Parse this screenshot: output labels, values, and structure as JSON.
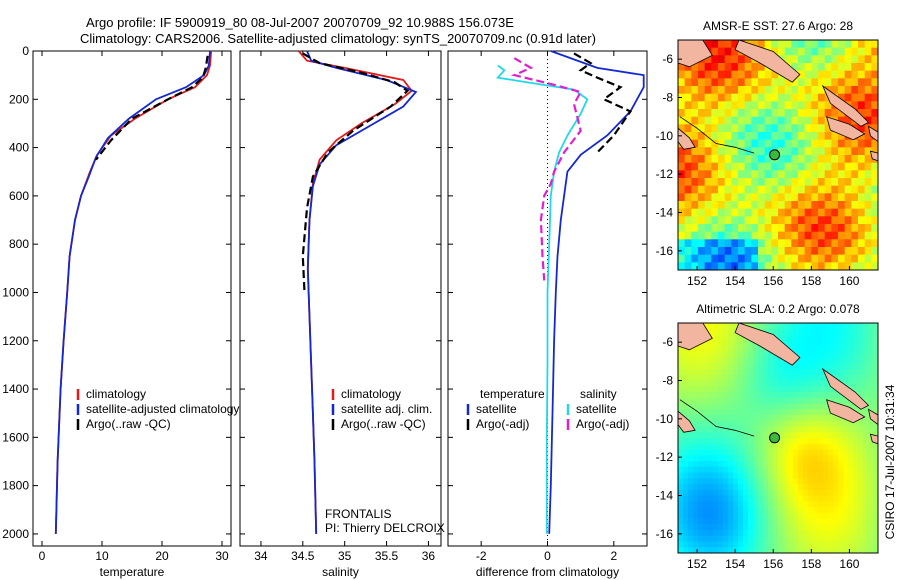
{
  "title_line1": "Argo profile: IF 5900919_80 08-Jul-2007 20070709_92 10.988S 156.073E",
  "title_line2": "Climatology: CARS2006. Satellite-adjusted climatology: synTS_20070709.nc (0.91d later)",
  "credit": "CSIRO 17-Jul-2007 10:31:34",
  "float_info": {
    "line1": "FRONTALIS",
    "line2": "PI: Thierry DELCROIX"
  },
  "colors": {
    "red": "#e31a1c",
    "blue": "#1428d2",
    "black": "#000000",
    "cyan": "#22d8e8",
    "magenta": "#e020d0"
  },
  "chart_data": [
    {
      "id": "temperature",
      "type": "line",
      "xlabel": "temperature",
      "xlim": [
        -1.5,
        31.5
      ],
      "ylim": [
        2050,
        0
      ],
      "xticks": [
        0,
        10,
        20,
        30
      ],
      "yticks": [
        0,
        200,
        400,
        600,
        800,
        1000,
        1200,
        1400,
        1600,
        1800,
        2000
      ],
      "legend": {
        "position": "lower-middle",
        "entries": [
          {
            "label": "climatology",
            "color": "red"
          },
          {
            "label": "satellite-adjusted climatology",
            "color": "blue"
          },
          {
            "label": "Argo(..raw -QC)",
            "color": "black"
          }
        ]
      },
      "series": [
        {
          "name": "climatology",
          "color": "red",
          "style": "solid",
          "points": [
            [
              28.2,
              0
            ],
            [
              28.0,
              60
            ],
            [
              27.5,
              100
            ],
            [
              25.5,
              150
            ],
            [
              21,
              200
            ],
            [
              15.5,
              280
            ],
            [
              11.5,
              350
            ],
            [
              9.2,
              430
            ],
            [
              8.0,
              500
            ],
            [
              6.5,
              600
            ],
            [
              5.5,
              700
            ],
            [
              4.6,
              850
            ],
            [
              4.2,
              1000
            ],
            [
              3.6,
              1200
            ],
            [
              3.1,
              1400
            ],
            [
              2.6,
              1700
            ],
            [
              2.3,
              2000
            ]
          ]
        },
        {
          "name": "satellite-adjusted climatology",
          "color": "blue",
          "style": "solid",
          "points": [
            [
              28.0,
              0
            ],
            [
              27.8,
              60
            ],
            [
              27.0,
              100
            ],
            [
              24.0,
              150
            ],
            [
              19.0,
              200
            ],
            [
              14.5,
              280
            ],
            [
              11.0,
              360
            ],
            [
              9.0,
              440
            ],
            [
              7.8,
              520
            ],
            [
              6.5,
              600
            ],
            [
              5.5,
              700
            ],
            [
              4.6,
              850
            ],
            [
              4.2,
              1000
            ],
            [
              3.6,
              1200
            ],
            [
              3.1,
              1400
            ],
            [
              2.6,
              1700
            ],
            [
              2.3,
              2000
            ]
          ]
        },
        {
          "name": "Argo(..raw -QC)",
          "color": "black",
          "style": "dashed",
          "points": [
            [
              27.6,
              20
            ],
            [
              27.3,
              70
            ],
            [
              26.8,
              110
            ],
            [
              25.0,
              150
            ],
            [
              21.0,
              200
            ],
            [
              15.0,
              280
            ],
            [
              11.5,
              370
            ],
            [
              9.0,
              450
            ]
          ]
        }
      ]
    },
    {
      "id": "salinity",
      "type": "line",
      "xlabel": "salinity",
      "xlim": [
        33.75,
        36.15
      ],
      "ylim": [
        2050,
        0
      ],
      "xticks": [
        34,
        34.5,
        35,
        35.5,
        36
      ],
      "yticks": [
        0,
        200,
        400,
        600,
        800,
        1000,
        1200,
        1400,
        1600,
        1800,
        2000
      ],
      "legend": {
        "position": "lower-middle",
        "entries": [
          {
            "label": "climatology",
            "color": "red"
          },
          {
            "label": "satellite adj. clim.",
            "color": "blue"
          },
          {
            "label": "Argo(..raw -QC)",
            "color": "black"
          }
        ]
      },
      "series": [
        {
          "name": "climatology",
          "color": "red",
          "style": "solid",
          "points": [
            [
              34.45,
              0
            ],
            [
              34.55,
              40
            ],
            [
              35.0,
              70
            ],
            [
              35.7,
              120
            ],
            [
              35.8,
              165
            ],
            [
              35.6,
              220
            ],
            [
              35.2,
              300
            ],
            [
              34.9,
              370
            ],
            [
              34.7,
              450
            ],
            [
              34.62,
              550
            ],
            [
              34.58,
              700
            ],
            [
              34.56,
              900
            ],
            [
              34.58,
              1100
            ],
            [
              34.6,
              1300
            ],
            [
              34.62,
              1500
            ],
            [
              34.64,
              1700
            ],
            [
              34.66,
              2000
            ]
          ]
        },
        {
          "name": "satellite adj. clim.",
          "color": "blue",
          "style": "solid",
          "points": [
            [
              34.55,
              0
            ],
            [
              34.6,
              40
            ],
            [
              34.9,
              70
            ],
            [
              35.5,
              120
            ],
            [
              35.85,
              170
            ],
            [
              35.7,
              230
            ],
            [
              35.3,
              310
            ],
            [
              34.9,
              390
            ],
            [
              34.7,
              470
            ],
            [
              34.62,
              560
            ],
            [
              34.58,
              700
            ],
            [
              34.56,
              900
            ],
            [
              34.58,
              1100
            ],
            [
              34.6,
              1300
            ],
            [
              34.62,
              1500
            ],
            [
              34.64,
              1700
            ],
            [
              34.66,
              2000
            ]
          ]
        },
        {
          "name": "Argo(..raw -QC)",
          "color": "black",
          "style": "dashed",
          "points": [
            [
              34.5,
              10
            ],
            [
              34.7,
              50
            ],
            [
              35.2,
              90
            ],
            [
              35.6,
              130
            ],
            [
              35.75,
              165
            ],
            [
              35.55,
              230
            ],
            [
              35.1,
              330
            ],
            [
              34.8,
              420
            ],
            [
              34.62,
              520
            ],
            [
              34.55,
              650
            ],
            [
              34.5,
              850
            ],
            [
              34.52,
              1000
            ]
          ]
        }
      ]
    },
    {
      "id": "difference",
      "type": "line",
      "xlabel": "difference from climatology",
      "xlim": [
        -3.0,
        3.0
      ],
      "ylim": [
        2050,
        0
      ],
      "xticks": [
        -2,
        0,
        2
      ],
      "yticks": [
        0,
        200,
        400,
        600,
        800,
        1000,
        1200,
        1400,
        1600,
        1800,
        2000
      ],
      "legend": {
        "position": "lower-middle",
        "entries": [
          {
            "label": "temperature",
            "color": "",
            "column": 0,
            "row": 0
          },
          {
            "label": "satellite",
            "color": "blue",
            "column": 0,
            "row": 1
          },
          {
            "label": "Argo(-adj)",
            "color": "black",
            "column": 0,
            "row": 2
          },
          {
            "label": "salinity",
            "color": "",
            "column": 1,
            "row": 0
          },
          {
            "label": "satellite",
            "color": "cyan",
            "column": 1,
            "row": 1
          },
          {
            "label": "Argo(-adj)",
            "color": "magenta",
            "column": 1,
            "row": 2
          }
        ]
      },
      "series": [
        {
          "name": "temperature satellite",
          "color": "blue",
          "style": "solid",
          "points": [
            [
              0.1,
              0
            ],
            [
              1.5,
              70
            ],
            [
              2.9,
              100
            ],
            [
              2.9,
              150
            ],
            [
              2.5,
              250
            ],
            [
              1.8,
              350
            ],
            [
              1.0,
              430
            ],
            [
              0.6,
              500
            ],
            [
              0.5,
              600
            ],
            [
              0.4,
              700
            ],
            [
              0.3,
              850
            ],
            [
              0.25,
              1000
            ],
            [
              0.2,
              1200
            ],
            [
              0.15,
              1500
            ],
            [
              0.1,
              1800
            ],
            [
              0.05,
              2000
            ]
          ]
        },
        {
          "name": "temperature Argo(-adj)",
          "color": "black",
          "style": "dashed",
          "points": [
            [
              0.8,
              10
            ],
            [
              1.3,
              50
            ],
            [
              1.0,
              80
            ],
            [
              1.5,
              110
            ],
            [
              2.2,
              150
            ],
            [
              1.7,
              200
            ],
            [
              2.5,
              250
            ],
            [
              2.0,
              350
            ],
            [
              1.5,
              420
            ]
          ]
        },
        {
          "name": "salinity satellite",
          "color": "cyan",
          "style": "solid",
          "points": [
            [
              -1.5,
              60
            ],
            [
              -1.3,
              80
            ],
            [
              -1.5,
              110
            ],
            [
              -0.6,
              130
            ],
            [
              0.8,
              160
            ],
            [
              1.2,
              200
            ],
            [
              1.0,
              260
            ],
            [
              0.6,
              350
            ],
            [
              0.35,
              420
            ],
            [
              0.2,
              500
            ],
            [
              0.1,
              600
            ],
            [
              0.05,
              800
            ],
            [
              0.0,
              1000
            ],
            [
              0.0,
              1300
            ],
            [
              -0.02,
              1600
            ],
            [
              -0.02,
              2000
            ]
          ]
        },
        {
          "name": "salinity Argo(-adj)",
          "color": "magenta",
          "style": "dashed",
          "points": [
            [
              -1.0,
              30
            ],
            [
              -0.5,
              70
            ],
            [
              -1.0,
              100
            ],
            [
              0.2,
              140
            ],
            [
              1.0,
              170
            ],
            [
              0.8,
              220
            ],
            [
              1.0,
              330
            ],
            [
              0.5,
              420
            ],
            [
              0.2,
              500
            ],
            [
              0.1,
              550
            ],
            [
              -0.1,
              600
            ],
            [
              -0.2,
              700
            ],
            [
              -0.15,
              850
            ],
            [
              -0.1,
              950
            ]
          ]
        }
      ]
    },
    {
      "id": "sst_map",
      "type": "heatmap",
      "title": "AMSR-E SST: 27.6 Argo: 28",
      "xlim": [
        151,
        161.5
      ],
      "ylim": [
        -17,
        -5
      ],
      "xticks": [
        152,
        154,
        156,
        158,
        160
      ],
      "yticks": [
        -6,
        -8,
        -10,
        -12,
        -14,
        -16
      ],
      "argo_position": [
        156.073,
        -10.988
      ],
      "colormap": "jet"
    },
    {
      "id": "sla_map",
      "type": "heatmap",
      "title": "Altimetric SLA: 0.2 Argo: 0.078",
      "xlim": [
        151,
        161.5
      ],
      "ylim": [
        -17,
        -5
      ],
      "xticks": [
        152,
        154,
        156,
        158,
        160
      ],
      "yticks": [
        -6,
        -8,
        -10,
        -12,
        -14,
        -16
      ],
      "argo_position": [
        156.073,
        -10.988
      ],
      "colormap": "jet"
    }
  ]
}
